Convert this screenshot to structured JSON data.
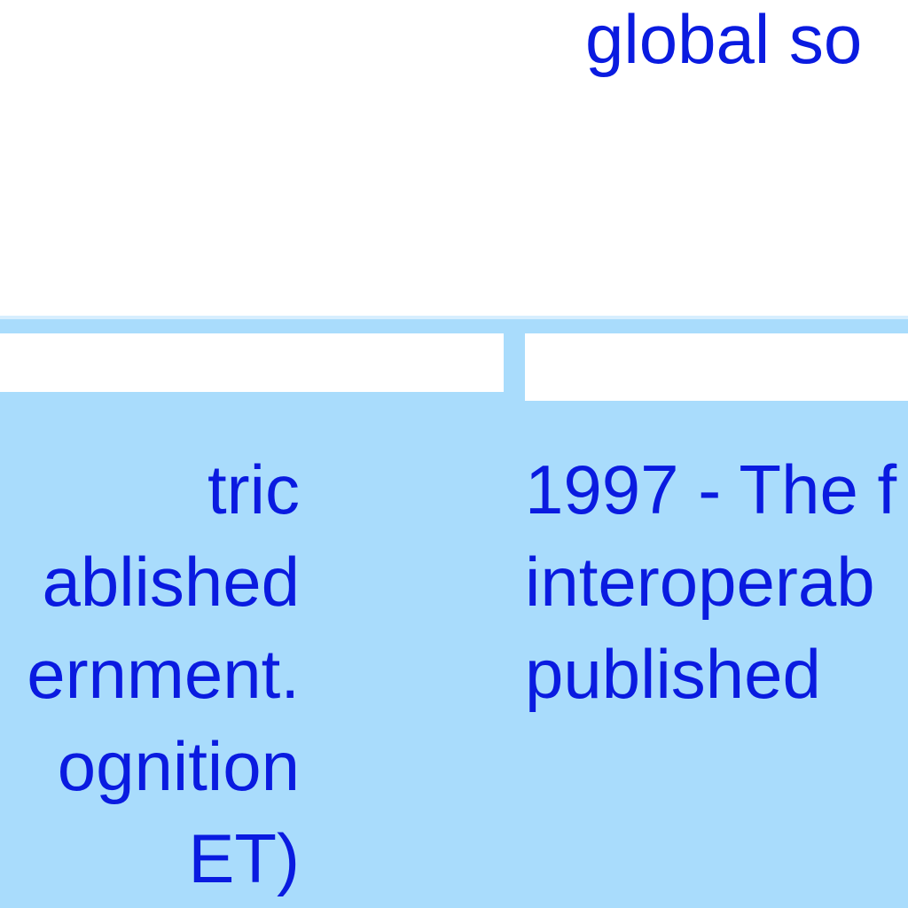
{
  "heading": "global so",
  "cards": [
    {
      "lines": [
        "tric",
        "ablished",
        "ernment.",
        "ognition",
        "ET)"
      ]
    },
    {
      "lines": [
        "1997 - The f",
        "interoperab",
        "published"
      ]
    }
  ],
  "colors": {
    "text": "#0a1be0",
    "band": "#a9dcfc",
    "header": "#ffffff"
  }
}
